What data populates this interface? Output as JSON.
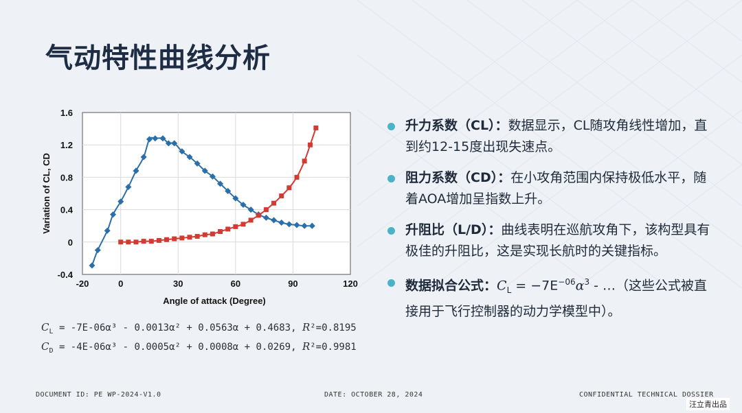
{
  "title": "气动特性曲线分析",
  "chart_data": {
    "type": "scatter",
    "xlabel": "Angle of attack (Degree)",
    "ylabel": "Variation of CL, CD",
    "xlim": [
      -20,
      120
    ],
    "ylim": [
      -0.4,
      1.6
    ],
    "xticks": [
      "-20",
      "0",
      "30",
      "60",
      "90",
      "120"
    ],
    "yticks": [
      "-0.4",
      "0",
      "0.4",
      "0.8",
      "1.2",
      "1.6"
    ],
    "xtick_values": [
      -20,
      0,
      30,
      60,
      90,
      120
    ],
    "ytick_values": [
      -0.4,
      0,
      0.4,
      0.8,
      1.2,
      1.6
    ],
    "grid": true,
    "series": [
      {
        "id": "CL",
        "color": "#2a6fa8",
        "marker": "diamond",
        "points": [
          [
            -15,
            -0.29
          ],
          [
            -12,
            -0.1
          ],
          [
            -7,
            0.14
          ],
          [
            -4,
            0.34
          ],
          [
            0,
            0.5
          ],
          [
            4,
            0.68
          ],
          [
            8,
            0.88
          ],
          [
            12,
            1.05
          ],
          [
            15,
            1.27
          ],
          [
            18,
            1.28
          ],
          [
            22,
            1.28
          ],
          [
            25,
            1.22
          ],
          [
            28,
            1.22
          ],
          [
            32,
            1.12
          ],
          [
            36,
            1.05
          ],
          [
            40,
            0.97
          ],
          [
            44,
            0.88
          ],
          [
            48,
            0.81
          ],
          [
            52,
            0.72
          ],
          [
            56,
            0.63
          ],
          [
            60,
            0.54
          ],
          [
            64,
            0.46
          ],
          [
            68,
            0.4
          ],
          [
            72,
            0.34
          ],
          [
            76,
            0.3
          ],
          [
            80,
            0.27
          ],
          [
            84,
            0.24
          ],
          [
            88,
            0.22
          ],
          [
            92,
            0.21
          ],
          [
            96,
            0.2
          ],
          [
            100,
            0.2
          ]
        ]
      },
      {
        "id": "CD",
        "color": "#d23a32",
        "marker": "square",
        "points": [
          [
            0,
            0.0
          ],
          [
            4,
            0.0
          ],
          [
            8,
            0.0
          ],
          [
            12,
            0.01
          ],
          [
            16,
            0.01
          ],
          [
            20,
            0.02
          ],
          [
            24,
            0.03
          ],
          [
            28,
            0.04
          ],
          [
            32,
            0.05
          ],
          [
            36,
            0.06
          ],
          [
            40,
            0.07
          ],
          [
            44,
            0.09
          ],
          [
            48,
            0.1
          ],
          [
            52,
            0.13
          ],
          [
            56,
            0.16
          ],
          [
            60,
            0.19
          ],
          [
            64,
            0.22
          ],
          [
            68,
            0.27
          ],
          [
            72,
            0.33
          ],
          [
            76,
            0.4
          ],
          [
            80,
            0.48
          ],
          [
            84,
            0.57
          ],
          [
            88,
            0.67
          ],
          [
            92,
            0.8
          ],
          [
            96,
            1.0
          ],
          [
            99,
            1.2
          ],
          [
            102,
            1.41
          ]
        ]
      }
    ]
  },
  "formulas": {
    "cl": {
      "sym": "C",
      "sub": "L",
      "rest": " = -7E-06α³ - 0.0013α² + 0.0563α + 0.4683, ",
      "r": "R",
      "r2": "²=0.8195"
    },
    "cd": {
      "sym": "C",
      "sub": "D",
      "rest": " = -4E-06α³ - 0.0005α² + 0.0008α + 0.0269, ",
      "r": "R",
      "r2": "²=0.9981"
    }
  },
  "bullets": [
    {
      "head": "升力系数（CL）：",
      "text": "数据显示，CL随攻角线性增加，直到约12-15度出现失速点。"
    },
    {
      "head": "阻力系数（CD）：",
      "text": "在小攻角范围内保持极低水平，随着AOA增加呈指数上升。"
    },
    {
      "head": "升阻比（L/D）：",
      "text": "曲线表明在巡航攻角下，该构型具有极佳的升阻比，这是实现长航时的关键指标。"
    },
    {
      "head": "数据拟合公式：",
      "math_c": "C",
      "math_sub": "L",
      "math_eq": " = −7E",
      "math_sup": "−06",
      "math_alpha": "α",
      "math_sup2": "3",
      "math_tail": " - …",
      "text": "（这些公式被直接用于飞行控制器的动力学模型中）。"
    }
  ],
  "footer": {
    "doc_id": "DOCUMENT ID: PE WP-2024-V1.0",
    "date": "DATE: OCTOBER 28, 2024",
    "conf": "CONFIDENTIAL TECHNICAL DOSSIER"
  },
  "brand": "汪立青出品"
}
